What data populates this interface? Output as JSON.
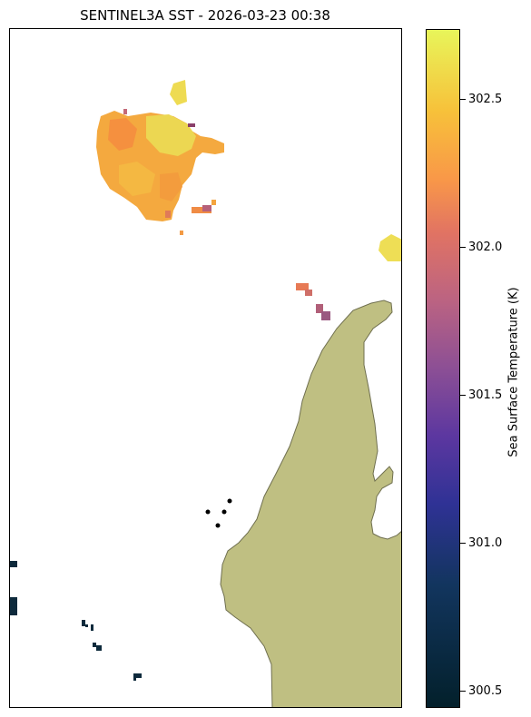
{
  "title": "SENTINEL3A SST - 2026-03-23 00:38",
  "colorbar": {
    "label": "Sea Surface Temperature (K)",
    "ticks": [
      "302.5",
      "302.0",
      "301.5",
      "301.0",
      "300.5"
    ],
    "range_k": [
      300.45,
      302.75
    ],
    "colormap_stops": [
      "#03202b",
      "#2f3295",
      "#8c4f95",
      "#e17363",
      "#f99848",
      "#e8f55a"
    ]
  },
  "map": {
    "land_color": "#bfbf82",
    "land_outline_color": "#6f6f4f",
    "missing_data_color": "#ffffff"
  }
}
